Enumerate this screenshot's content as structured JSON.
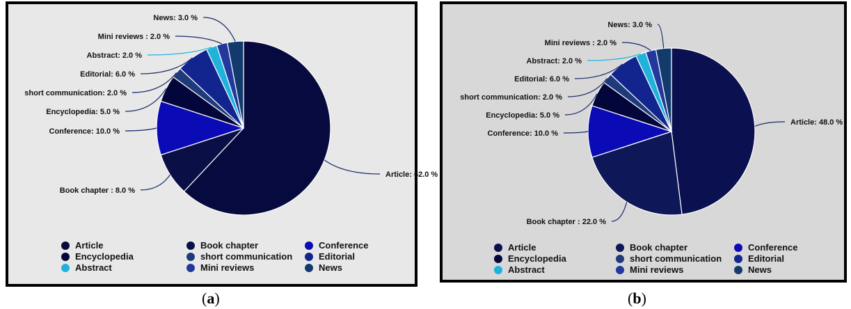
{
  "chart_data": [
    {
      "type": "pie",
      "panel_label": "a",
      "background": "#e8e8e8",
      "start_angle_deg": 0,
      "slices": [
        {
          "name": "Article",
          "value": 62.0,
          "label": "Article: 62.0 %",
          "color": "#060a3e"
        },
        {
          "name": "Book chapter",
          "value": 8.0,
          "label": "Book chapter : 8.0 %",
          "color": "#0a0f46"
        },
        {
          "name": "Conference",
          "value": 10.0,
          "label": "Conference: 10.0 %",
          "color": "#0b0bb5"
        },
        {
          "name": "Encyclopedia",
          "value": 5.0,
          "label": "Encyclopedia: 5.0 %",
          "color": "#03063a"
        },
        {
          "name": "short communication",
          "value": 2.0,
          "label": "short communication: 2.0 %",
          "color": "#1e3a7a"
        },
        {
          "name": "Editorial",
          "value": 6.0,
          "label": "Editorial: 6.0 %",
          "color": "#12258f"
        },
        {
          "name": "Abstract",
          "value": 2.0,
          "label": "Abstract: 2.0 %",
          "color": "#1fb3dc"
        },
        {
          "name": "Mini reviews",
          "value": 2.0,
          "label": "Mini reviews : 2.0 %",
          "color": "#23389e"
        },
        {
          "name": "News",
          "value": 3.0,
          "label": "News: 3.0 %",
          "color": "#123a6c"
        }
      ],
      "legend": [
        "Article",
        "Book chapter",
        "Conference",
        "Encyclopedia",
        "short communication",
        "Editorial",
        "Abstract",
        "Mini reviews",
        "News"
      ],
      "legend_placement": "bottom"
    },
    {
      "type": "pie",
      "panel_label": "b",
      "background": "#d8d8d8",
      "start_angle_deg": 0,
      "slices": [
        {
          "name": "Article",
          "value": 48.0,
          "label": "Article: 48.0 %",
          "color": "#0b1150"
        },
        {
          "name": "Book chapter",
          "value": 22.0,
          "label": "Book chapter : 22.0 %",
          "color": "#0e1757"
        },
        {
          "name": "Conference",
          "value": 10.0,
          "label": "Conference: 10.0 %",
          "color": "#0b0bb5"
        },
        {
          "name": "Encyclopedia",
          "value": 5.0,
          "label": "Encyclopedia: 5.0 %",
          "color": "#03063a"
        },
        {
          "name": "short communication",
          "value": 2.0,
          "label": "short communication: 2.0 %",
          "color": "#1e3a7a"
        },
        {
          "name": "Editorial",
          "value": 6.0,
          "label": "Editorial: 6.0 %",
          "color": "#12258f"
        },
        {
          "name": "Abstract",
          "value": 2.0,
          "label": "Abstract: 2.0 %",
          "color": "#1fb3dc"
        },
        {
          "name": "Mini reviews",
          "value": 2.0,
          "label": "Mini reviews : 2.0 %",
          "color": "#23389e"
        },
        {
          "name": "News",
          "value": 3.0,
          "label": "News: 3.0 %",
          "color": "#123a6c"
        }
      ],
      "legend": [
        "Article",
        "Book chapter",
        "Conference",
        "Encyclopedia",
        "short communication",
        "Editorial",
        "Abstract",
        "Mini reviews",
        "News"
      ],
      "legend_placement": "bottom"
    }
  ]
}
